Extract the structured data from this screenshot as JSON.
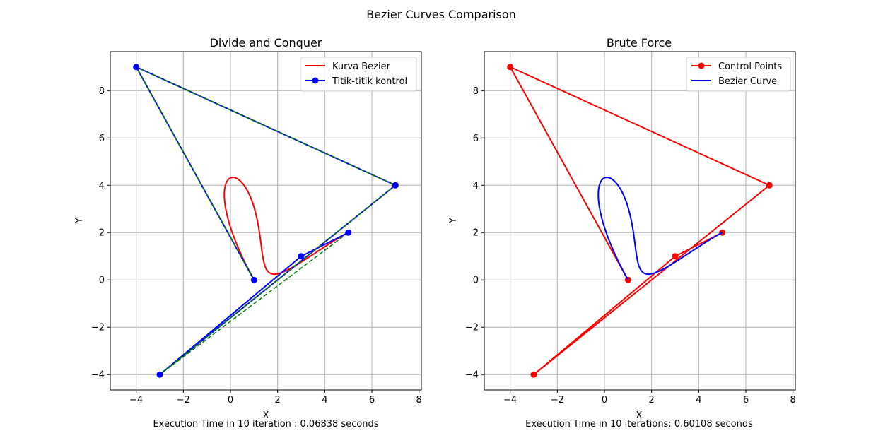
{
  "figure_title": "Bezier Curves Comparison",
  "chart_data": [
    {
      "type": "line",
      "title": "Divide and Conquer",
      "xlabel": "X",
      "ylabel": "Y",
      "footer": "Execution Time in 10 iteration : 0.06838 seconds",
      "xlim": [
        -5.1,
        8.1
      ],
      "ylim": [
        -4.65,
        9.65
      ],
      "xticks": [
        -4,
        -2,
        0,
        2,
        4,
        6,
        8
      ],
      "yticks": [
        -4,
        -2,
        0,
        2,
        4,
        6,
        8
      ],
      "grid": true,
      "legend_position": "top-right",
      "control_points": [
        [
          1,
          0
        ],
        [
          -4,
          9
        ],
        [
          7,
          4
        ],
        [
          -3,
          -4
        ],
        [
          3,
          1
        ],
        [
          5,
          2
        ]
      ],
      "polygon_overlay": [
        [
          1,
          0
        ],
        [
          -4,
          9
        ],
        [
          7,
          4
        ],
        [
          -3,
          -4
        ],
        [
          5,
          2
        ]
      ],
      "series": [
        {
          "name": "Kurva Bezier",
          "kind": "bezier",
          "color": "#ff0000"
        },
        {
          "name": "Titik-titik kontrol",
          "kind": "control",
          "color": "#0000ff"
        }
      ],
      "overlay_color": "#008000"
    },
    {
      "type": "line",
      "title": "Brute Force",
      "xlabel": "X",
      "ylabel": "Y",
      "footer": "Execution Time in 10 iterations: 0.60108 seconds",
      "xlim": [
        -5.1,
        8.1
      ],
      "ylim": [
        -4.65,
        9.65
      ],
      "xticks": [
        -4,
        -2,
        0,
        2,
        4,
        6,
        8
      ],
      "yticks": [
        -4,
        -2,
        0,
        2,
        4,
        6,
        8
      ],
      "grid": true,
      "legend_position": "top-right",
      "control_points": [
        [
          1,
          0
        ],
        [
          -4,
          9
        ],
        [
          7,
          4
        ],
        [
          -3,
          -4
        ],
        [
          3,
          1
        ],
        [
          5,
          2
        ]
      ],
      "series": [
        {
          "name": "Control Points",
          "kind": "control",
          "color": "#ff0000"
        },
        {
          "name": "Bezier Curve",
          "kind": "bezier",
          "color": "#0000ff"
        }
      ]
    }
  ]
}
